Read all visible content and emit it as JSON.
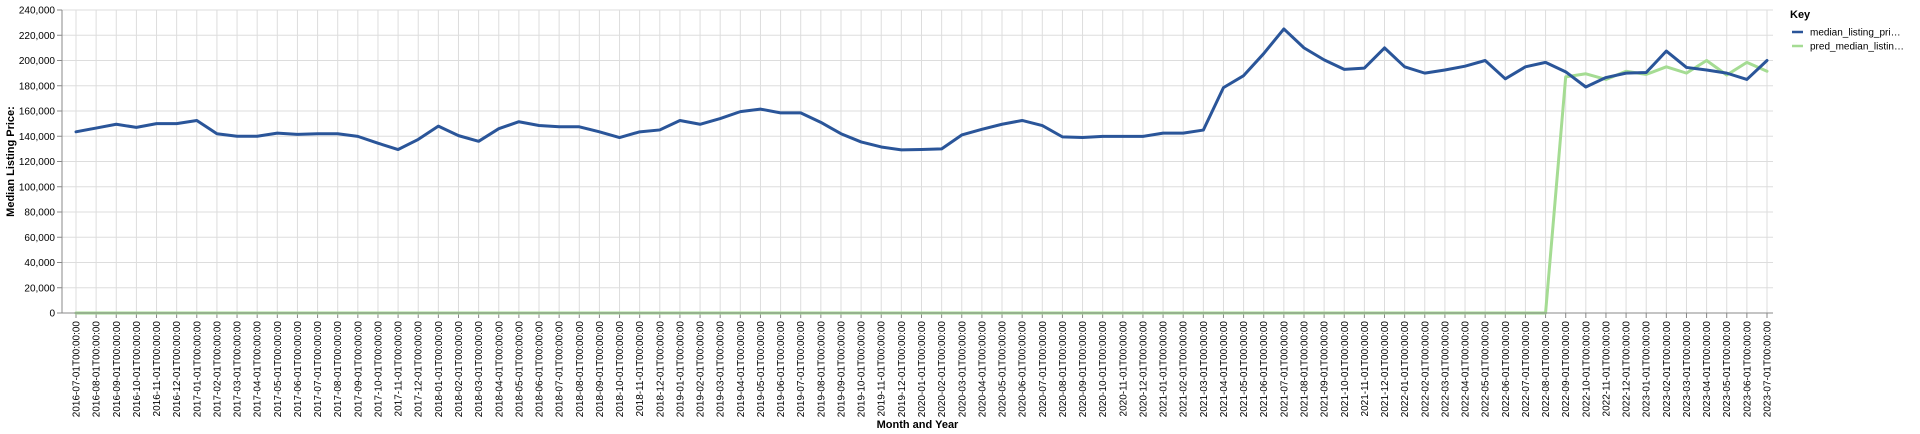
{
  "chart_data": {
    "type": "line",
    "xlabel": "Month and Year",
    "ylabel": "Median Listing Price:",
    "ylim": [
      0,
      240000
    ],
    "y_ticks": [
      "0",
      "20,000",
      "40,000",
      "60,000",
      "80,000",
      "100,000",
      "120,000",
      "140,000",
      "160,000",
      "180,000",
      "200,000",
      "220,000",
      "240,000"
    ],
    "grid": true,
    "legend_position": "top-right",
    "legend_title": "Key",
    "x": [
      "2016-07-01T00:00:00",
      "2016-08-01T00:00:00",
      "2016-09-01T00:00:00",
      "2016-10-01T00:00:00",
      "2016-11-01T00:00:00",
      "2016-12-01T00:00:00",
      "2017-01-01T00:00:00",
      "2017-02-01T00:00:00",
      "2017-03-01T00:00:00",
      "2017-04-01T00:00:00",
      "2017-05-01T00:00:00",
      "2017-06-01T00:00:00",
      "2017-07-01T00:00:00",
      "2017-08-01T00:00:00",
      "2017-09-01T00:00:00",
      "2017-10-01T00:00:00",
      "2017-11-01T00:00:00",
      "2017-12-01T00:00:00",
      "2018-01-01T00:00:00",
      "2018-02-01T00:00:00",
      "2018-03-01T00:00:00",
      "2018-04-01T00:00:00",
      "2018-05-01T00:00:00",
      "2018-06-01T00:00:00",
      "2018-07-01T00:00:00",
      "2018-08-01T00:00:00",
      "2018-09-01T00:00:00",
      "2018-10-01T00:00:00",
      "2018-11-01T00:00:00",
      "2018-12-01T00:00:00",
      "2019-01-01T00:00:00",
      "2019-02-01T00:00:00",
      "2019-03-01T00:00:00",
      "2019-04-01T00:00:00",
      "2019-05-01T00:00:00",
      "2019-06-01T00:00:00",
      "2019-07-01T00:00:00",
      "2019-08-01T00:00:00",
      "2019-09-01T00:00:00",
      "2019-10-01T00:00:00",
      "2019-11-01T00:00:00",
      "2019-12-01T00:00:00",
      "2020-01-01T00:00:00",
      "2020-02-01T00:00:00",
      "2020-03-01T00:00:00",
      "2020-04-01T00:00:00",
      "2020-05-01T00:00:00",
      "2020-06-01T00:00:00",
      "2020-07-01T00:00:00",
      "2020-08-01T00:00:00",
      "2020-09-01T00:00:00",
      "2020-10-01T00:00:00",
      "2020-11-01T00:00:00",
      "2020-12-01T00:00:00",
      "2021-01-01T00:00:00",
      "2021-02-01T00:00:00",
      "2021-03-01T00:00:00",
      "2021-04-01T00:00:00",
      "2021-05-01T00:00:00",
      "2021-06-01T00:00:00",
      "2021-07-01T00:00:00",
      "2021-08-01T00:00:00",
      "2021-09-01T00:00:00",
      "2021-10-01T00:00:00",
      "2021-11-01T00:00:00",
      "2021-12-01T00:00:00",
      "2022-01-01T00:00:00",
      "2022-02-01T00:00:00",
      "2022-03-01T00:00:00",
      "2022-04-01T00:00:00",
      "2022-05-01T00:00:00",
      "2022-06-01T00:00:00",
      "2022-07-01T00:00:00",
      "2022-08-01T00:00:00",
      "2022-09-01T00:00:00",
      "2022-10-01T00:00:00",
      "2022-11-01T00:00:00",
      "2022-12-01T00:00:00",
      "2023-01-01T00:00:00",
      "2023-02-01T00:00:00",
      "2023-03-01T00:00:00",
      "2023-04-01T00:00:00",
      "2023-05-01T00:00:00",
      "2023-06-01T00:00:00",
      "2023-07-01T00:00:00"
    ],
    "series": [
      {
        "name": "median_listing_pri…",
        "color": "#2a5599",
        "values": [
          143500,
          146500,
          149500,
          147000,
          150000,
          150000,
          152500,
          142000,
          140000,
          140000,
          142500,
          141500,
          142000,
          142000,
          139900,
          134500,
          129500,
          137500,
          148000,
          140500,
          136000,
          146000,
          151500,
          148500,
          147500,
          147500,
          143500,
          139000,
          143500,
          145000,
          152500,
          149500,
          154000,
          159500,
          161500,
          158500,
          158500,
          151000,
          142000,
          135500,
          131500,
          129200,
          129500,
          130000,
          141000,
          145500,
          149500,
          152500,
          148500,
          139500,
          139000,
          139900,
          139900,
          139900,
          142500,
          142500,
          144900,
          178500,
          188000,
          205500,
          225000,
          210000,
          200500,
          193000,
          194000,
          210000,
          195000,
          190000,
          192500,
          195500,
          200000,
          185500,
          195000,
          198500,
          191000,
          179000,
          186500,
          190000,
          190500,
          207500,
          194500,
          192500,
          190000,
          185000,
          200000
        ]
      },
      {
        "name": "pred_median_listin…",
        "color": "#a5dc93",
        "values": [
          0,
          0,
          0,
          0,
          0,
          0,
          0,
          0,
          0,
          0,
          0,
          0,
          0,
          0,
          0,
          0,
          0,
          0,
          0,
          0,
          0,
          0,
          0,
          0,
          0,
          0,
          0,
          0,
          0,
          0,
          0,
          0,
          0,
          0,
          0,
          0,
          0,
          0,
          0,
          0,
          0,
          0,
          0,
          0,
          0,
          0,
          0,
          0,
          0,
          0,
          0,
          0,
          0,
          0,
          0,
          0,
          0,
          0,
          0,
          0,
          0,
          0,
          0,
          0,
          0,
          0,
          0,
          0,
          0,
          0,
          0,
          0,
          0,
          0,
          187000,
          189500,
          185000,
          191500,
          189000,
          195000,
          190000,
          200000,
          188500,
          198500,
          191500
        ]
      }
    ]
  }
}
